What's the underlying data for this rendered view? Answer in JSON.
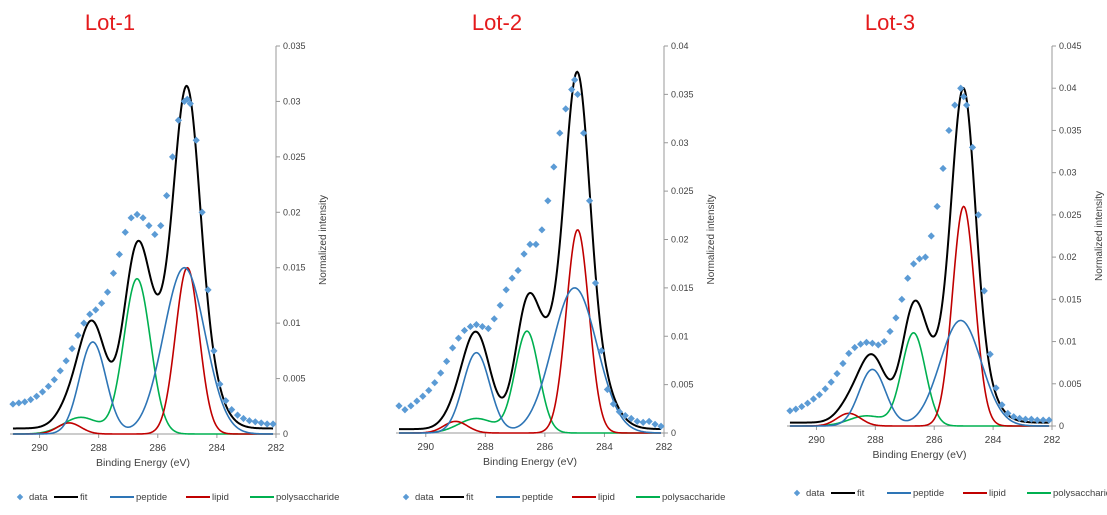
{
  "chart_data": [
    {
      "type": "line",
      "title": "Lot-1",
      "xlabel": "Binding Energy (eV)",
      "ylabel": "Normalized intensity",
      "xlim": [
        291,
        282
      ],
      "ylim": [
        0,
        0.035
      ],
      "x_ticks": [
        290,
        288,
        286,
        284,
        282
      ],
      "y_ticks": [
        0,
        0.005,
        0.01,
        0.015,
        0.02,
        0.025,
        0.03,
        0.035
      ],
      "legend": [
        "data",
        "fit",
        "peptide",
        "lipid",
        "polysaccharide"
      ],
      "legend_position": "bottom",
      "grid": false,
      "components": {
        "peptide": [
          [
            288.2,
            0.0083,
            0.45
          ],
          [
            285.1,
            0.015,
            0.7
          ]
        ],
        "lipid": [
          [
            289.0,
            0.001,
            0.4
          ],
          [
            285.0,
            0.015,
            0.4
          ]
        ],
        "polysaccharide": [
          [
            288.6,
            0.0015,
            0.6
          ],
          [
            286.7,
            0.014,
            0.45
          ]
        ],
        "fit_extra": [
          [
            286.7,
            0.0017,
            0.5
          ],
          [
            285.0,
            0.001,
            0.4
          ]
        ],
        "background": 0.0005
      },
      "data_points": [
        [
          290.9,
          0.0027
        ],
        [
          290.7,
          0.0028
        ],
        [
          290.5,
          0.0029
        ],
        [
          290.3,
          0.0031
        ],
        [
          290.1,
          0.0034
        ],
        [
          289.9,
          0.0038
        ],
        [
          289.7,
          0.0043
        ],
        [
          289.5,
          0.0049
        ],
        [
          289.3,
          0.0057
        ],
        [
          289.1,
          0.0066
        ],
        [
          288.9,
          0.0077
        ],
        [
          288.7,
          0.0089
        ],
        [
          288.5,
          0.01
        ],
        [
          288.3,
          0.0108
        ],
        [
          288.1,
          0.0112
        ],
        [
          287.9,
          0.0118
        ],
        [
          287.7,
          0.0128
        ],
        [
          287.5,
          0.0145
        ],
        [
          287.3,
          0.0162
        ],
        [
          287.1,
          0.0182
        ],
        [
          286.9,
          0.0195
        ],
        [
          286.7,
          0.0198
        ],
        [
          286.5,
          0.0195
        ],
        [
          286.3,
          0.0188
        ],
        [
          286.1,
          0.018
        ],
        [
          285.9,
          0.0188
        ],
        [
          285.7,
          0.0215
        ],
        [
          285.5,
          0.025
        ],
        [
          285.3,
          0.0283
        ],
        [
          285.1,
          0.03
        ],
        [
          285.0,
          0.0302
        ],
        [
          284.9,
          0.0298
        ],
        [
          284.7,
          0.0265
        ],
        [
          284.5,
          0.02
        ],
        [
          284.3,
          0.013
        ],
        [
          284.1,
          0.0075
        ],
        [
          283.9,
          0.0045
        ],
        [
          283.7,
          0.003
        ],
        [
          283.5,
          0.0022
        ],
        [
          283.3,
          0.0017
        ],
        [
          283.1,
          0.0014
        ],
        [
          282.9,
          0.0012
        ],
        [
          282.7,
          0.0011
        ],
        [
          282.5,
          0.001
        ],
        [
          282.3,
          0.0009
        ],
        [
          282.1,
          0.0009
        ]
      ]
    },
    {
      "type": "line",
      "title": "Lot-2",
      "xlabel": "Binding Energy (eV)",
      "ylabel": "Normalized intensity",
      "xlim": [
        291,
        282
      ],
      "ylim": [
        0,
        0.04
      ],
      "x_ticks": [
        290,
        288,
        286,
        284,
        282
      ],
      "y_ticks": [
        0,
        0.005,
        0.01,
        0.015,
        0.02,
        0.025,
        0.03,
        0.035,
        0.04
      ],
      "legend": [
        "data",
        "fit",
        "peptide",
        "lipid",
        "polysaccharide"
      ],
      "legend_position": "bottom",
      "grid": false,
      "components": {
        "peptide": [
          [
            288.3,
            0.0083,
            0.45
          ],
          [
            285.0,
            0.015,
            0.75
          ]
        ],
        "lipid": [
          [
            289.0,
            0.0012,
            0.4
          ],
          [
            284.9,
            0.021,
            0.38
          ]
        ],
        "polysaccharide": [
          [
            288.3,
            0.0015,
            0.6
          ],
          [
            286.6,
            0.0105,
            0.4
          ]
        ],
        "fit_extra": [
          [
            286.3,
            0.002,
            0.5
          ],
          [
            284.9,
            0.001,
            0.4
          ]
        ],
        "background": 0.0004
      },
      "data_points": [
        [
          290.9,
          0.0028
        ],
        [
          290.7,
          0.0024
        ],
        [
          290.5,
          0.0028
        ],
        [
          290.3,
          0.0033
        ],
        [
          290.1,
          0.0038
        ],
        [
          289.9,
          0.0044
        ],
        [
          289.7,
          0.0052
        ],
        [
          289.5,
          0.0062
        ],
        [
          289.3,
          0.0074
        ],
        [
          289.1,
          0.0088
        ],
        [
          288.9,
          0.0098
        ],
        [
          288.7,
          0.0106
        ],
        [
          288.5,
          0.011
        ],
        [
          288.3,
          0.0112
        ],
        [
          288.1,
          0.011
        ],
        [
          287.9,
          0.0108
        ],
        [
          287.7,
          0.0118
        ],
        [
          287.5,
          0.0132
        ],
        [
          287.3,
          0.0148
        ],
        [
          287.1,
          0.016
        ],
        [
          286.9,
          0.0168
        ],
        [
          286.7,
          0.0185
        ],
        [
          286.5,
          0.0195
        ],
        [
          286.3,
          0.0195
        ],
        [
          286.1,
          0.021
        ],
        [
          285.9,
          0.024
        ],
        [
          285.7,
          0.0275
        ],
        [
          285.5,
          0.031
        ],
        [
          285.3,
          0.0335
        ],
        [
          285.1,
          0.0355
        ],
        [
          285.0,
          0.0365
        ],
        [
          284.9,
          0.035
        ],
        [
          284.7,
          0.031
        ],
        [
          284.5,
          0.024
        ],
        [
          284.3,
          0.0155
        ],
        [
          284.1,
          0.0085
        ],
        [
          283.9,
          0.0045
        ],
        [
          283.7,
          0.003
        ],
        [
          283.5,
          0.0022
        ],
        [
          283.3,
          0.0018
        ],
        [
          283.1,
          0.0015
        ],
        [
          282.9,
          0.0012
        ],
        [
          282.7,
          0.0011
        ],
        [
          282.5,
          0.0012
        ],
        [
          282.3,
          0.0009
        ],
        [
          282.1,
          0.0007
        ]
      ]
    },
    {
      "type": "line",
      "title": "Lot-3",
      "xlabel": "Binding Energy (eV)",
      "ylabel": "Normalized intensity",
      "xlim": [
        291,
        282
      ],
      "ylim": [
        0,
        0.045
      ],
      "x_ticks": [
        290,
        288,
        286,
        284,
        282
      ],
      "y_ticks": [
        0,
        0.005,
        0.01,
        0.015,
        0.02,
        0.025,
        0.03,
        0.035,
        0.04,
        0.045
      ],
      "legend": [
        "data",
        "fit",
        "peptide",
        "lipid",
        "polysaccharide"
      ],
      "legend_position": "bottom",
      "grid": false,
      "components": {
        "peptide": [
          [
            288.1,
            0.0067,
            0.45
          ],
          [
            285.1,
            0.0125,
            0.7
          ]
        ],
        "lipid": [
          [
            288.9,
            0.0015,
            0.4
          ],
          [
            285.0,
            0.026,
            0.38
          ]
        ],
        "polysaccharide": [
          [
            288.3,
            0.0012,
            0.6
          ],
          [
            286.7,
            0.011,
            0.4
          ]
        ],
        "fit_extra": [
          [
            286.5,
            0.0025,
            0.5
          ],
          [
            285.0,
            0.0012,
            0.4
          ]
        ],
        "background": 0.0004
      },
      "data_points": [
        [
          290.9,
          0.0018
        ],
        [
          290.7,
          0.002
        ],
        [
          290.5,
          0.0023
        ],
        [
          290.3,
          0.0027
        ],
        [
          290.1,
          0.0032
        ],
        [
          289.9,
          0.0037
        ],
        [
          289.7,
          0.0044
        ],
        [
          289.5,
          0.0052
        ],
        [
          289.3,
          0.0062
        ],
        [
          289.1,
          0.0074
        ],
        [
          288.9,
          0.0086
        ],
        [
          288.7,
          0.0093
        ],
        [
          288.5,
          0.0097
        ],
        [
          288.3,
          0.0099
        ],
        [
          288.1,
          0.0098
        ],
        [
          287.9,
          0.0096
        ],
        [
          287.7,
          0.01
        ],
        [
          287.5,
          0.0112
        ],
        [
          287.3,
          0.0128
        ],
        [
          287.1,
          0.015
        ],
        [
          286.9,
          0.0175
        ],
        [
          286.7,
          0.0192
        ],
        [
          286.5,
          0.0198
        ],
        [
          286.3,
          0.02
        ],
        [
          286.1,
          0.0225
        ],
        [
          285.9,
          0.026
        ],
        [
          285.7,
          0.0305
        ],
        [
          285.5,
          0.035
        ],
        [
          285.3,
          0.038
        ],
        [
          285.1,
          0.04
        ],
        [
          285.0,
          0.039
        ],
        [
          284.9,
          0.038
        ],
        [
          284.7,
          0.033
        ],
        [
          284.5,
          0.025
        ],
        [
          284.3,
          0.016
        ],
        [
          284.1,
          0.0085
        ],
        [
          283.9,
          0.0045
        ],
        [
          283.7,
          0.0025
        ],
        [
          283.5,
          0.0015
        ],
        [
          283.3,
          0.0011
        ],
        [
          283.1,
          0.0009
        ],
        [
          282.9,
          0.0008
        ],
        [
          282.7,
          0.0008
        ],
        [
          282.5,
          0.0007
        ],
        [
          282.3,
          0.0007
        ],
        [
          282.1,
          0.0007
        ]
      ]
    }
  ],
  "colors": {
    "title": "#e41a1c",
    "data": "#5b9bd5",
    "fit": "#000000",
    "peptide": "#2e75b6",
    "lipid": "#c00000",
    "polysaccharide": "#00b050",
    "axis": "#999999",
    "text": "#404040"
  }
}
